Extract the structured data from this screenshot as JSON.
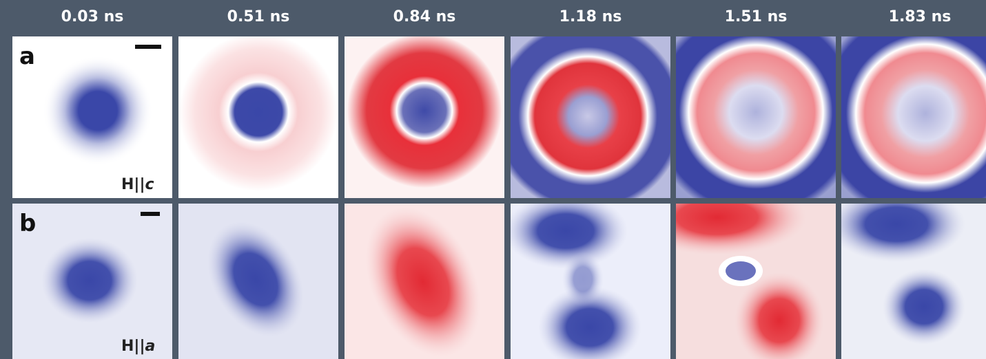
{
  "columns": [
    "0.03 ns",
    "0.51 ns",
    "0.84 ns",
    "1.18 ns",
    "1.51 ns",
    "1.83 ns"
  ],
  "rows": [
    {
      "label": "a",
      "field": "H||",
      "axis": "c"
    },
    {
      "label": "b",
      "field": "H||",
      "axis": "a"
    }
  ]
}
